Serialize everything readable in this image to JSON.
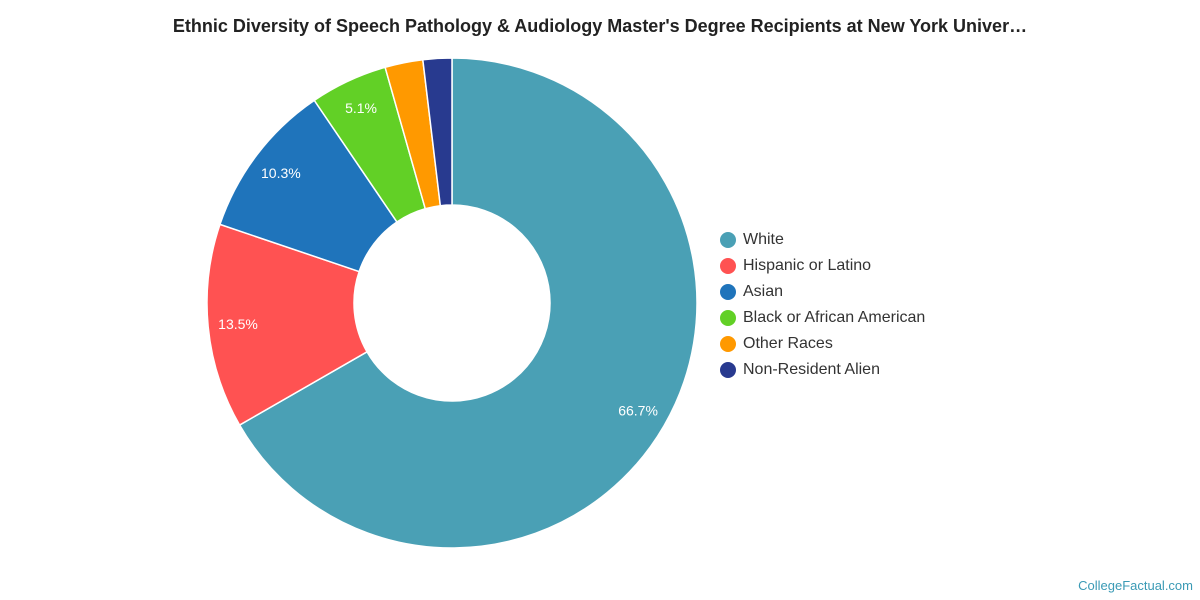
{
  "chart_data": {
    "type": "pie",
    "title": "Ethnic Diversity of Speech Pathology & Audiology Master's Degree Recipients at New York Univer…",
    "donut": true,
    "legend_position": "right",
    "slices": [
      {
        "label": "White",
        "value": 66.7,
        "data_label": "66.7%",
        "color": "#4aa0b5"
      },
      {
        "label": "Hispanic or Latino",
        "value": 13.5,
        "data_label": "13.5%",
        "color": "#ff5252"
      },
      {
        "label": "Asian",
        "value": 10.3,
        "data_label": "10.3%",
        "color": "#1f74bb"
      },
      {
        "label": "Black or African American",
        "value": 5.1,
        "data_label": "5.1%",
        "color": "#62d026"
      },
      {
        "label": "Other Races",
        "value": 2.5,
        "data_label": "",
        "color": "#ff9900"
      },
      {
        "label": "Non-Resident Alien",
        "value": 1.9,
        "data_label": "",
        "color": "#283a8f"
      }
    ]
  },
  "watermark": "CollegeFactual.com"
}
